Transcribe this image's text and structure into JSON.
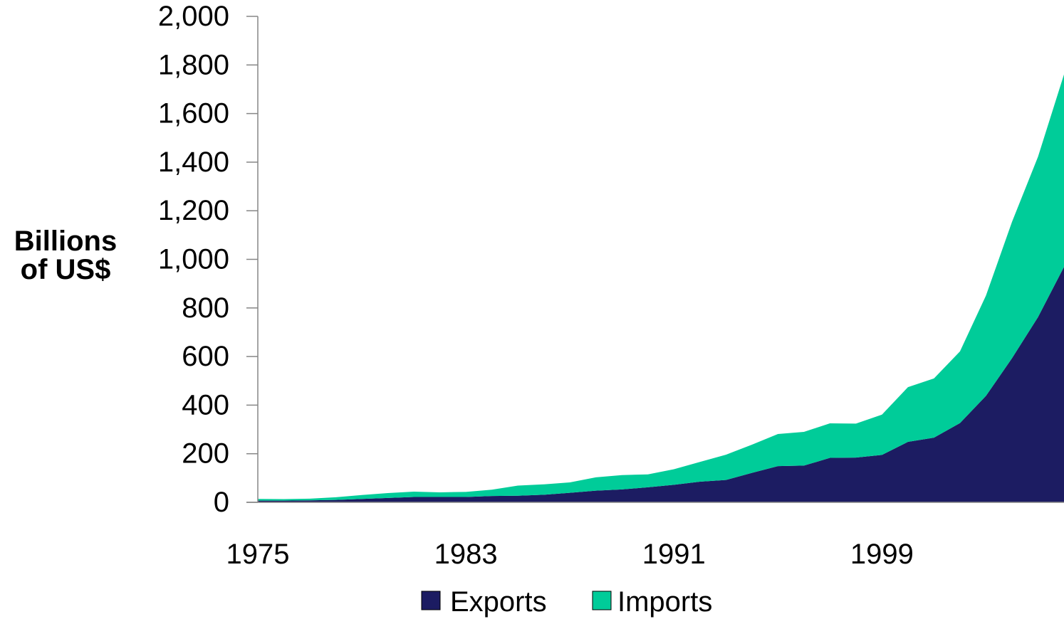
{
  "chart_data": {
    "type": "area",
    "stacked": true,
    "ylabel_lines": [
      "Billions",
      "of US$"
    ],
    "xlabel": "",
    "title": "",
    "ylim": [
      0,
      2000
    ],
    "yticks": [
      0,
      200,
      400,
      600,
      800,
      1000,
      1200,
      1400,
      1600,
      1800,
      2000
    ],
    "ytick_labels": [
      "0",
      "200",
      "400",
      "600",
      "800",
      "1,000",
      "1,200",
      "1,400",
      "1,600",
      "1,800",
      "2,000"
    ],
    "xlim": [
      1975,
      2006
    ],
    "xticks": [
      1975,
      1983,
      1991,
      1999
    ],
    "xtick_labels": [
      "1975",
      "1983",
      "1991",
      "1999"
    ],
    "x": [
      1975,
      1976,
      1977,
      1978,
      1979,
      1980,
      1981,
      1982,
      1983,
      1984,
      1985,
      1986,
      1987,
      1988,
      1989,
      1990,
      1991,
      1992,
      1993,
      1994,
      1995,
      1996,
      1997,
      1998,
      1999,
      2000,
      2001,
      2002,
      2003,
      2004,
      2005,
      2006
    ],
    "series": [
      {
        "name": "Exports",
        "color": "#1c1c62",
        "values": [
          7,
          7,
          8,
          10,
          14,
          18,
          22,
          22,
          22,
          26,
          27,
          31,
          39,
          48,
          53,
          62,
          72,
          85,
          92,
          121,
          149,
          151,
          183,
          184,
          195,
          249,
          266,
          326,
          438,
          593,
          762,
          969
        ]
      },
      {
        "name": "Imports",
        "color": "#00cc99",
        "values": [
          7,
          6,
          7,
          11,
          16,
          20,
          22,
          19,
          21,
          26,
          42,
          43,
          43,
          55,
          59,
          53,
          64,
          81,
          104,
          116,
          132,
          139,
          142,
          140,
          166,
          225,
          244,
          295,
          413,
          561,
          660,
          792
        ]
      }
    ],
    "legend_position": "bottom-center",
    "grid": false
  }
}
